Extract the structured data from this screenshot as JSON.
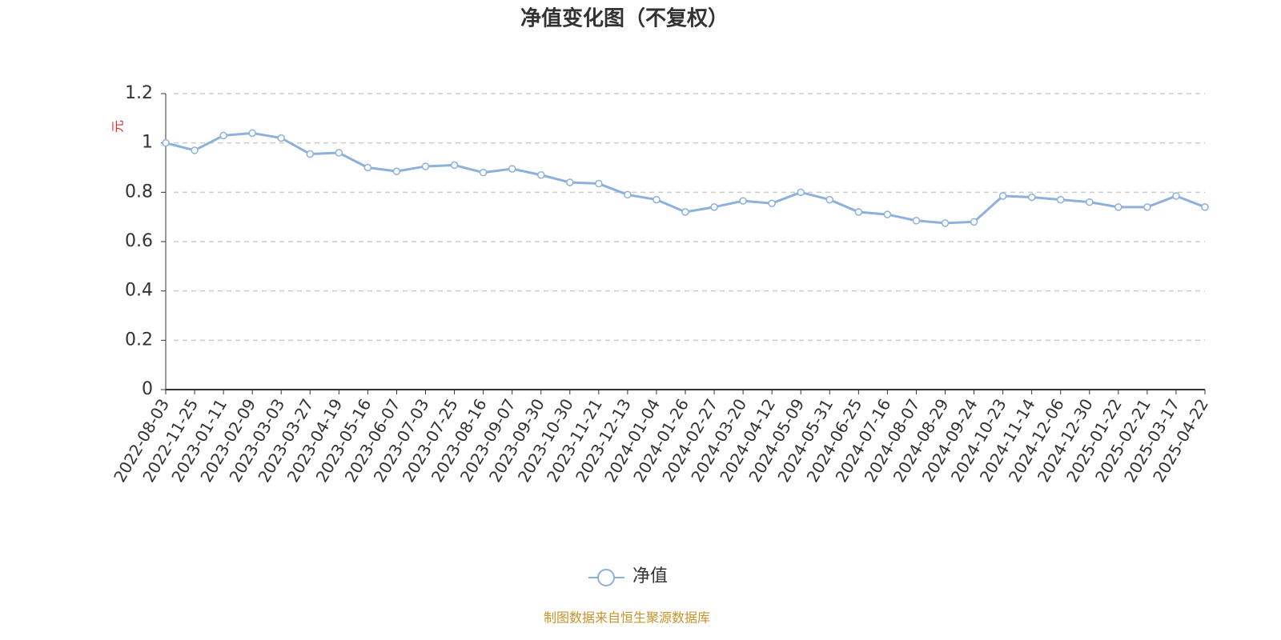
{
  "chart_data": {
    "type": "line",
    "title": "净值变化图（不复权）",
    "y_label": "元",
    "categories": [
      "2022-08-03",
      "2022-11-25",
      "2023-01-11",
      "2023-02-09",
      "2023-03-03",
      "2023-03-27",
      "2023-04-19",
      "2023-05-16",
      "2023-06-07",
      "2023-07-03",
      "2023-07-25",
      "2023-08-16",
      "2023-09-07",
      "2023-09-30",
      "2023-10-30",
      "2023-11-21",
      "2023-12-13",
      "2024-01-04",
      "2024-01-26",
      "2024-02-27",
      "2024-03-20",
      "2024-04-12",
      "2024-05-09",
      "2024-05-31",
      "2024-06-25",
      "2024-07-16",
      "2024-08-07",
      "2024-08-29",
      "2024-09-24",
      "2024-10-23",
      "2024-11-14",
      "2024-12-06",
      "2024-12-30",
      "2025-01-22",
      "2025-02-21",
      "2025-03-17",
      "2025-04-22"
    ],
    "series": [
      {
        "name": "净值",
        "color": "#8eb0dd",
        "values": [
          1.0,
          0.97,
          1.03,
          1.04,
          1.02,
          0.955,
          0.96,
          0.9,
          0.885,
          0.905,
          0.91,
          0.88,
          0.895,
          0.87,
          0.84,
          0.835,
          0.79,
          0.77,
          0.72,
          0.74,
          0.765,
          0.755,
          0.8,
          0.77,
          0.72,
          0.71,
          0.685,
          0.675,
          0.68,
          0.785,
          0.78,
          0.77,
          0.76,
          0.74,
          0.74,
          0.785,
          0.74
        ]
      }
    ],
    "ylim": [
      0,
      1.2
    ],
    "yticks": [
      0,
      0.2,
      0.4,
      0.6,
      0.8,
      1,
      1.2
    ],
    "grid": true,
    "source": "制图数据来自恒生聚源数据库"
  }
}
